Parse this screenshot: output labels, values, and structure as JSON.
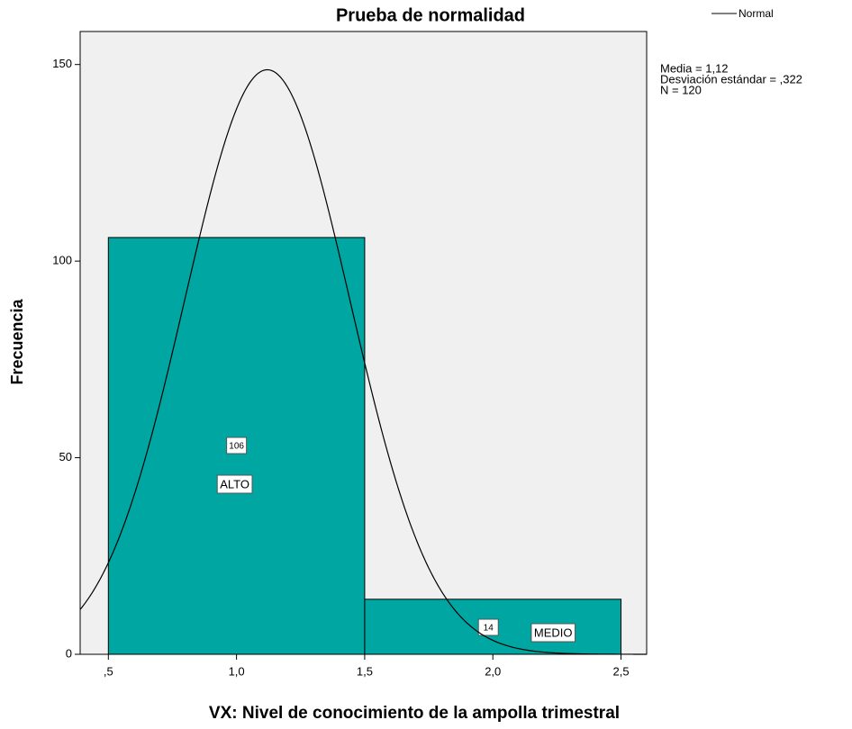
{
  "chart_data": {
    "type": "histogram",
    "title": "Prueba de normalidad",
    "x_label": "VX: Nivel de conocimiento de la ampolla trimestral",
    "y_label": "Frecuencia",
    "bins": [
      0.5,
      1.5,
      2.5
    ],
    "values": [
      106,
      14
    ],
    "bar_labels": [
      "ALTO",
      "MEDIO"
    ],
    "color": "#00a6a1",
    "xlim": [
      0.39,
      2.6
    ],
    "ylim": [
      0,
      158.4
    ],
    "xticks": [
      {
        "value": 0.5,
        "label": ",5"
      },
      {
        "value": 1.0,
        "label": "1,0"
      },
      {
        "value": 1.5,
        "label": "1,5"
      },
      {
        "value": 2.0,
        "label": "2,0"
      },
      {
        "value": 2.5,
        "label": "2,5"
      }
    ],
    "yticks": [
      0,
      50,
      100,
      150
    ],
    "legend": "Normal",
    "stats": [
      "Media = 1,12",
      "Desviación estándar = ,322",
      "N = 120"
    ],
    "normal": {
      "mean": 1.12,
      "sd": 0.322,
      "n": 120
    }
  }
}
